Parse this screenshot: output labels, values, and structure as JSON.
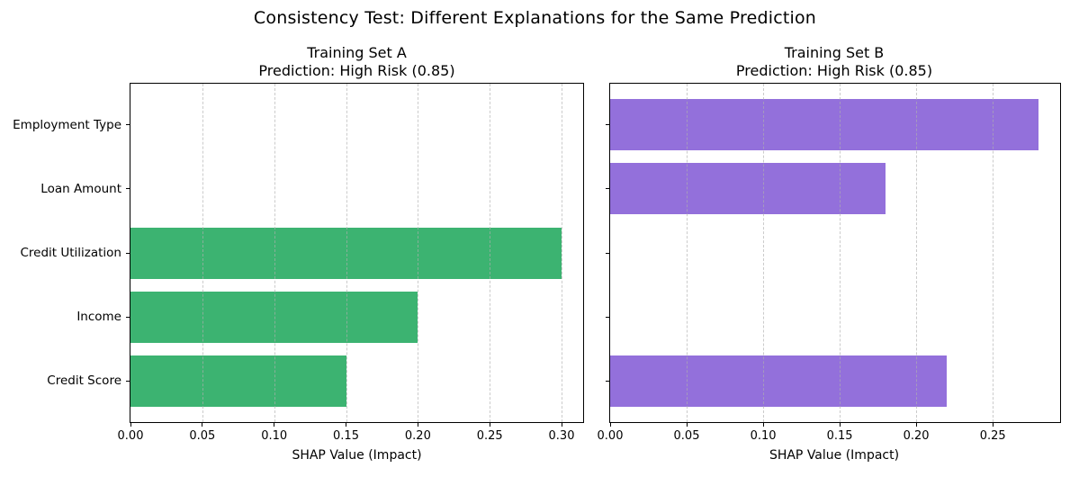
{
  "figure_title": "Consistency Test: Different Explanations for the Same Prediction",
  "chart_data": [
    {
      "type": "bar",
      "orientation": "horizontal",
      "title_line1": "Training Set A",
      "title_line2": "Prediction: High Risk (0.85)",
      "categories": [
        "Employment Type",
        "Loan Amount",
        "Credit Utilization",
        "Income",
        "Credit Score"
      ],
      "values": [
        0.0,
        0.0,
        0.3,
        0.2,
        0.15
      ],
      "xlabel": "SHAP Value (Impact)",
      "xlim": [
        0,
        0.315
      ],
      "xtick_values": [
        0,
        0.05,
        0.1,
        0.15,
        0.2,
        0.25,
        0.3
      ],
      "xtick_labels": [
        "0.00",
        "0.05",
        "0.10",
        "0.15",
        "0.20",
        "0.25",
        "0.30"
      ],
      "bar_color": "#3CB371",
      "grid": "dashed-vertical",
      "show_category_labels": true
    },
    {
      "type": "bar",
      "orientation": "horizontal",
      "title_line1": "Training Set B",
      "title_line2": "Prediction: High Risk (0.85)",
      "categories": [
        "Employment Type",
        "Loan Amount",
        "Credit Utilization",
        "Income",
        "Credit Score"
      ],
      "values": [
        0.28,
        0.18,
        0.0,
        0.0,
        0.22
      ],
      "xlabel": "SHAP Value (Impact)",
      "xlim": [
        0,
        0.294
      ],
      "xtick_values": [
        0,
        0.05,
        0.1,
        0.15,
        0.2,
        0.25
      ],
      "xtick_labels": [
        "0.00",
        "0.05",
        "0.10",
        "0.15",
        "0.20",
        "0.25"
      ],
      "bar_color": "#9370DB",
      "grid": "dashed-vertical",
      "show_category_labels": false
    }
  ]
}
